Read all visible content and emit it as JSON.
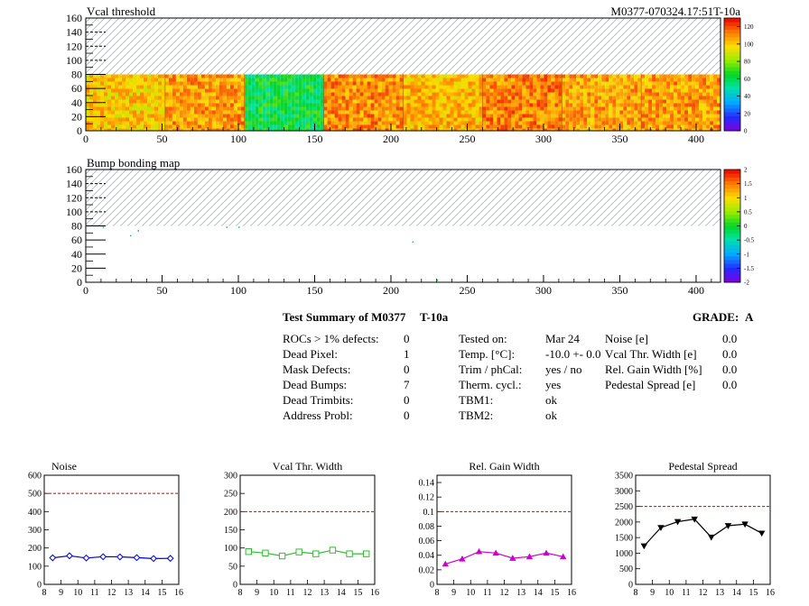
{
  "maps": [
    {
      "title": "Vcal threshold",
      "id_label": "M0377-070324.17:51T-10a",
      "x_ticks": [
        "0",
        "50",
        "100",
        "150",
        "200",
        "250",
        "300",
        "350",
        "400"
      ],
      "y_ticks": [
        "0",
        "20",
        "40",
        "60",
        "80",
        "100",
        "120",
        "140",
        "160"
      ],
      "z_ticks": [
        "0",
        "20",
        "40",
        "60",
        "80",
        "100",
        "120"
      ],
      "zmax": 130
    },
    {
      "title": "Bump bonding map",
      "x_ticks": [
        "0",
        "50",
        "100",
        "150",
        "200",
        "250",
        "300",
        "350",
        "400"
      ],
      "y_ticks": [
        "0",
        "20",
        "40",
        "60",
        "80",
        "100",
        "120",
        "140",
        "160"
      ],
      "z_ticks": [
        "-2",
        "-1.5",
        "-1",
        "-0.5",
        "0",
        "0.5",
        "1",
        "1.5",
        "2"
      ],
      "zmin": -2,
      "zmax": 2
    }
  ],
  "summary": {
    "title": "Test Summary of M0377",
    "temp_tag": "T-10a",
    "grade_label": "GRADE:",
    "grade": "A",
    "col1": [
      {
        "label": "ROCs > 1% defects:",
        "value": "0"
      },
      {
        "label": "Dead Pixel:",
        "value": "1"
      },
      {
        "label": "Mask Defects:",
        "value": "0"
      },
      {
        "label": "Dead Bumps:",
        "value": "7"
      },
      {
        "label": "Dead Trimbits:",
        "value": "0"
      },
      {
        "label": "Address Probl:",
        "value": "0"
      }
    ],
    "col2": [
      {
        "label": "Tested on:",
        "value": "Mar 24"
      },
      {
        "label": "Temp. [°C]:",
        "value": "-10.0 +- 0.0"
      },
      {
        "label": "Trim / phCal:",
        "value": "yes / no"
      },
      {
        "label": "Therm. cycl.:",
        "value": "yes"
      },
      {
        "label": "TBM1:",
        "value": "ok"
      },
      {
        "label": "TBM2:",
        "value": "ok"
      }
    ],
    "col3": [
      {
        "label": "Noise [e]",
        "value": "0.0"
      },
      {
        "label": "Vcal Thr. Width [e]",
        "value": "0.0"
      },
      {
        "label": "Rel. Gain Width [%]",
        "value": "0.0"
      },
      {
        "label": "Pedestal Spread [e]",
        "value": "0.0"
      }
    ]
  },
  "chart_data": [
    {
      "type": "line",
      "title": "Noise",
      "x": [
        8.5,
        9.5,
        10.5,
        11.5,
        12.5,
        13.5,
        14.5,
        15.5
      ],
      "values": [
        146,
        157,
        145,
        152,
        151,
        147,
        142,
        143
      ],
      "xlim": [
        8,
        16
      ],
      "ylim": [
        0,
        600
      ],
      "x_ticks": [
        "8",
        "9",
        "10",
        "11",
        "12",
        "13",
        "14",
        "15",
        "16"
      ],
      "y_ticks": [
        "0",
        "100",
        "200",
        "300",
        "400",
        "500",
        "600"
      ],
      "limit": 500,
      "marker": "diamond",
      "color": "#0000cc"
    },
    {
      "type": "line",
      "title": "Vcal Thr. Width",
      "x": [
        8.5,
        9.5,
        10.5,
        11.5,
        12.5,
        13.5,
        14.5,
        15.5
      ],
      "values": [
        90,
        86,
        78,
        89,
        84,
        94,
        84,
        84
      ],
      "xlim": [
        8,
        16
      ],
      "ylim": [
        0,
        300
      ],
      "x_ticks": [
        "8",
        "9",
        "10",
        "11",
        "12",
        "13",
        "14",
        "15",
        "16"
      ],
      "y_ticks": [
        "0",
        "50",
        "100",
        "150",
        "200",
        "250",
        "300"
      ],
      "limit": 200,
      "marker": "square",
      "color": "#33bb33"
    },
    {
      "type": "line",
      "title": "Rel. Gain Width",
      "x": [
        8.5,
        9.5,
        10.5,
        11.5,
        12.5,
        13.5,
        14.5,
        15.5
      ],
      "values": [
        0.028,
        0.035,
        0.045,
        0.043,
        0.036,
        0.038,
        0.043,
        0.038
      ],
      "xlim": [
        8,
        16
      ],
      "ylim": [
        0,
        0.15
      ],
      "x_ticks": [
        "8",
        "9",
        "10",
        "11",
        "12",
        "13",
        "14",
        "15",
        "16"
      ],
      "y_ticks": [
        "0",
        "0.02",
        "0.04",
        "0.06",
        "0.08",
        "0.1",
        "0.12",
        "0.14"
      ],
      "y_tick_values": [
        0,
        0.02,
        0.04,
        0.06,
        0.08,
        0.1,
        0.12,
        0.14
      ],
      "limit": 0.1,
      "marker": "triangle-up",
      "color": "#cc00cc"
    },
    {
      "type": "line",
      "title": "Pedestal Spread",
      "x": [
        8.5,
        9.5,
        10.5,
        11.5,
        12.5,
        13.5,
        14.5,
        15.5
      ],
      "values": [
        1230,
        1820,
        2010,
        2090,
        1510,
        1880,
        1930,
        1640
      ],
      "xlim": [
        8,
        16
      ],
      "ylim": [
        0,
        3500
      ],
      "x_ticks": [
        "8",
        "9",
        "10",
        "11",
        "12",
        "13",
        "14",
        "15",
        "16"
      ],
      "y_ticks": [
        "0",
        "500",
        "1000",
        "1500",
        "2000",
        "2500",
        "3000",
        "3500"
      ],
      "limit": 2500,
      "marker": "triangle-down",
      "color": "#000000"
    }
  ]
}
